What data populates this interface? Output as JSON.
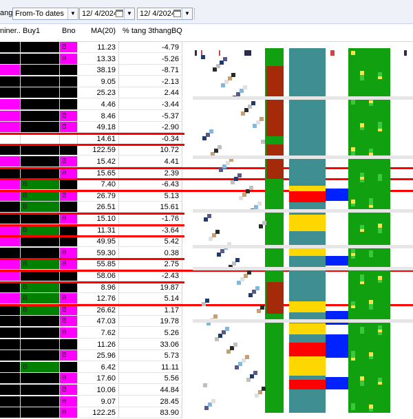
{
  "toolbar": {
    "range_label": "ange",
    "range_select": "From-To dates",
    "from_date": "12/  4/2024",
    "to_date": "12/  4/2024"
  },
  "table": {
    "columns": [
      "niner...",
      "Buy1",
      "Bno",
      "MA(20)",
      "% tang 3thangBQ"
    ],
    "rows": [
      {
        "c1": "black",
        "c2": "black",
        "c3": "magenta",
        "c3_text": "B",
        "ma": "11.23",
        "pct": "-4.79"
      },
      {
        "c1": "black",
        "c2": "black",
        "c3": "magenta",
        "c3_text": "B",
        "ma": "13.33",
        "pct": "-5.26"
      },
      {
        "c1": "magenta",
        "c2": "black",
        "c3": "black",
        "c3_text": "",
        "ma": "38.19",
        "pct": "-8.71"
      },
      {
        "c1": "black",
        "c2": "black",
        "c3": "black",
        "c3_text": "",
        "ma": "9.05",
        "pct": "-2.13"
      },
      {
        "c1": "black",
        "c2": "black",
        "c3": "black",
        "c3_text": "",
        "ma": "25.23",
        "pct": "2.44"
      },
      {
        "c1": "magenta",
        "c2": "black",
        "c3": "black",
        "c3_text": "",
        "ma": "4.46",
        "pct": "-3.44"
      },
      {
        "c1": "magenta",
        "c2": "black",
        "c3": "magenta",
        "c3_text": "B",
        "ma": "8.46",
        "pct": "-5.37"
      },
      {
        "c1": "magenta",
        "c2": "black",
        "c3": "magenta",
        "c3_text": "B",
        "ma": "49.18",
        "pct": "-2.90"
      },
      {
        "c1": "white",
        "c2": "white",
        "c3": "white",
        "c3_text": "",
        "ma": "14.61",
        "pct": "-0.34"
      },
      {
        "c1": "black",
        "c2": "black",
        "c3": "black",
        "c3_text": "",
        "ma": "122.59",
        "pct": "10.72"
      },
      {
        "c1": "magenta",
        "c2": "black",
        "c3": "magenta",
        "c3_text": "B",
        "ma": "15.42",
        "pct": "4.41"
      },
      {
        "c1": "black",
        "c2": "black",
        "c3": "magenta",
        "c3_text": "B",
        "ma": "15.65",
        "pct": "2.39"
      },
      {
        "c1": "magenta",
        "c2": "green",
        "c2_text": "B",
        "c3": "black",
        "c3_text": "",
        "ma": "7.40",
        "pct": "-6.43"
      },
      {
        "c1": "magenta",
        "c2": "green",
        "c2_text": "B",
        "c3": "magenta",
        "c3_text": "B",
        "ma": "26.79",
        "pct": "5.13"
      },
      {
        "c1": "black",
        "c2": "green",
        "c2_text": "B",
        "c3": "black",
        "c3_text": "",
        "ma": "26.51",
        "pct": "15.61"
      },
      {
        "c1": "black",
        "c2": "black",
        "c3": "magenta",
        "c3_text": "B",
        "ma": "15.10",
        "pct": "-1.76"
      },
      {
        "c1": "magenta",
        "c2": "green",
        "c2_text": "B",
        "c3": "black",
        "c3_text": "",
        "ma": "11.31",
        "pct": "-3.64"
      },
      {
        "c1": "magenta",
        "c2": "black",
        "c3": "black",
        "c3_text": "",
        "ma": "49.95",
        "pct": "5.42"
      },
      {
        "c1": "black",
        "c2": "black",
        "c3": "magenta",
        "c3_text": "B",
        "ma": "59.30",
        "pct": "0.38"
      },
      {
        "c1": "magenta",
        "c2": "green",
        "c2_text": "B",
        "c3": "magenta",
        "c3_text": "B",
        "ma": "55.85",
        "pct": "2.75"
      },
      {
        "c1": "magenta",
        "c2": "black",
        "c3": "black",
        "c3_text": "",
        "ma": "58.06",
        "pct": "-2.43"
      },
      {
        "c1": "black",
        "c2": "green",
        "c2_text": "B",
        "c3": "black",
        "c3_text": "",
        "ma": "8.96",
        "pct": "19.87"
      },
      {
        "c1": "magenta",
        "c2": "green",
        "c2_text": "B",
        "c3": "magenta",
        "c3_text": "B",
        "ma": "12.76",
        "pct": "5.14"
      },
      {
        "c1": "black",
        "c2": "green",
        "c2_text": "B",
        "c3": "magenta",
        "c3_text": "B",
        "ma": "26.62",
        "pct": "1.17"
      },
      {
        "c1": "black",
        "c2": "black",
        "c3": "magenta",
        "c3_text": "B",
        "ma": "47.03",
        "pct": "19.78"
      },
      {
        "c1": "black",
        "c2": "black",
        "c3": "magenta",
        "c3_text": "B",
        "ma": "7.62",
        "pct": "5.26"
      },
      {
        "c1": "black",
        "c2": "black",
        "c3": "black",
        "c3_text": "",
        "ma": "11.26",
        "pct": "33.06"
      },
      {
        "c1": "black",
        "c2": "black",
        "c3": "magenta",
        "c3_text": "B",
        "ma": "25.96",
        "pct": "5.73"
      },
      {
        "c1": "black",
        "c2": "green",
        "c2_text": "B",
        "c3": "black",
        "c3_text": "",
        "ma": "6.42",
        "pct": "11.11"
      },
      {
        "c1": "black",
        "c2": "black",
        "c3": "magenta",
        "c3_text": "B",
        "ma": "17.60",
        "pct": "5.56"
      },
      {
        "c1": "black",
        "c2": "black",
        "c3": "magenta",
        "c3_text": "B",
        "ma": "10.06",
        "pct": "44.84"
      },
      {
        "c1": "black",
        "c2": "black",
        "c3": "magenta",
        "c3_text": "B",
        "ma": "9.07",
        "pct": "28.45"
      },
      {
        "c1": "black",
        "c2": "black",
        "c3": "magenta",
        "c3_text": "B",
        "ma": "122.25",
        "pct": "83.90"
      }
    ],
    "highlighted_rows": [
      8,
      9,
      11,
      12,
      13,
      15,
      16,
      17,
      19,
      20,
      21,
      23
    ]
  },
  "colors": {
    "black": "#000000",
    "magenta": "#ff00ff",
    "green": "#008000",
    "red": "#ff0000",
    "brown": "#a52a0a",
    "teal": "#3f8f92",
    "yellow": "#ffd700",
    "blue": "#0022ff",
    "bright_green": "#10a010"
  }
}
